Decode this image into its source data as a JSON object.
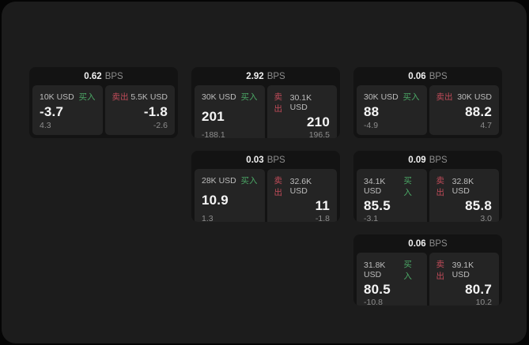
{
  "labels": {
    "bps_unit": "BPS",
    "buy": "买入",
    "sell": "卖出"
  },
  "colors": {
    "window_bg": "#1c1c1c",
    "card_bg": "#131313",
    "panel_bg": "#242424",
    "buy_green": "#4ba866",
    "sell_red": "#c04b59",
    "muted_text": "#8d8d8d",
    "size_text": "#bdbdbd"
  },
  "cards": [
    {
      "bps": "0.62",
      "buy": {
        "size": "10K USD",
        "price": "-3.7",
        "sub": "4.3"
      },
      "sell": {
        "size": "5.5K USD",
        "price": "-1.8",
        "sub": "-2.6"
      }
    },
    {
      "bps": "2.92",
      "buy": {
        "size": "30K USD",
        "price": "201",
        "sub": "-188.1"
      },
      "sell": {
        "size": "30.1K USD",
        "price": "210",
        "sub": "196.5"
      }
    },
    {
      "bps": "0.06",
      "buy": {
        "size": "30K USD",
        "price": "88",
        "sub": "-4.9"
      },
      "sell": {
        "size": "30K USD",
        "price": "88.2",
        "sub": "4.7"
      }
    },
    {
      "bps": "0.03",
      "buy": {
        "size": "28K USD",
        "price": "10.9",
        "sub": "1.3"
      },
      "sell": {
        "size": "32.6K USD",
        "price": "11",
        "sub": "-1.8"
      }
    },
    {
      "bps": "0.09",
      "buy": {
        "size": "34.1K USD",
        "price": "85.5",
        "sub": "-3.1"
      },
      "sell": {
        "size": "32.8K USD",
        "price": "85.8",
        "sub": "3.0"
      }
    },
    {
      "bps": "0.06",
      "buy": {
        "size": "31.8K USD",
        "price": "80.5",
        "sub": "-10.8"
      },
      "sell": {
        "size": "39.1K USD",
        "price": "80.7",
        "sub": "10.2"
      }
    }
  ]
}
